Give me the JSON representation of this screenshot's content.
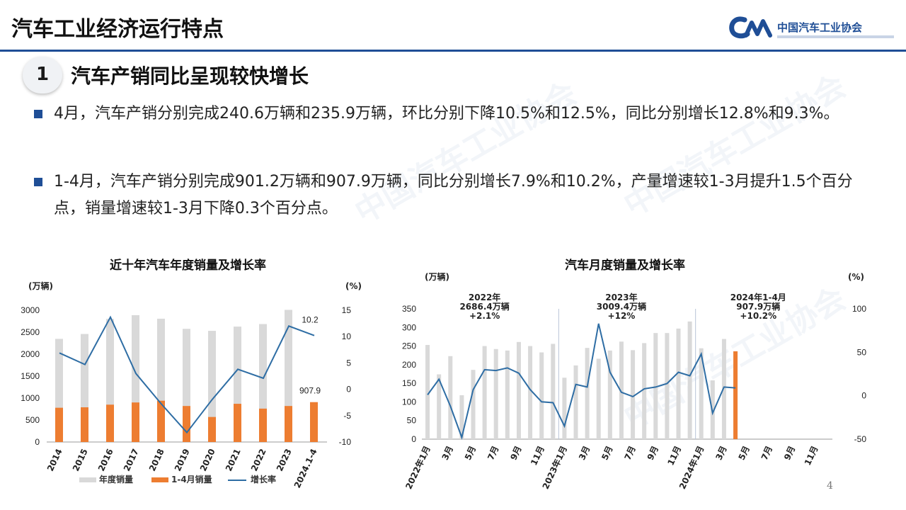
{
  "header": {
    "title": "汽车工业经济运行特点",
    "logo_text": "中国汽车工业协会"
  },
  "section": {
    "number": "1",
    "title": "汽车产销同比呈现较快增长"
  },
  "bullets": [
    "4月，汽车产销分别完成240.6万辆和235.9万辆，环比分别下降10.5%和12.5%，同比分别增长12.8%和9.3%。",
    "1-4月，汽车产销分别完成901.2万辆和907.9万辆，同比分别增长7.9%和10.2%，产量增速较1-3月提升1.5个百分点，销量增速较1-3月下降0.3个百分点。"
  ],
  "watermark": "中国汽车工业协会",
  "page_number": "4",
  "colors": {
    "brand": "#1f4e96",
    "bar_gray": "#d9d9d9",
    "bar_orange": "#ed7d31",
    "line_blue": "#2e6da4"
  },
  "chart_data": [
    {
      "type": "bar",
      "title": "近十年汽车年度销量及增长率",
      "y_unit": "(万辆)",
      "y2_unit": "(%)",
      "categories": [
        "2014",
        "2015",
        "2016",
        "2017",
        "2018",
        "2019",
        "2020",
        "2021",
        "2022",
        "2023",
        "2024.1-4"
      ],
      "ylim": [
        0,
        3000
      ],
      "yticks": [
        0,
        500,
        1000,
        1500,
        2000,
        2500,
        3000
      ],
      "y2lim": [
        -10,
        15
      ],
      "y2ticks": [
        -10,
        -5,
        0,
        5,
        10,
        15
      ],
      "series": [
        {
          "name": "年度销量",
          "kind": "bar",
          "values": [
            2349,
            2460,
            2803,
            2888,
            2808,
            2577,
            2531,
            2628,
            2686,
            3009,
            null
          ]
        },
        {
          "name": "1-4月销量",
          "kind": "bar",
          "values": [
            780,
            790,
            850,
            900,
            940,
            820,
            570,
            870,
            760,
            820,
            907.9
          ]
        },
        {
          "name": "增长率",
          "kind": "line",
          "axis": "y2",
          "values": [
            6.9,
            4.7,
            13.7,
            3.0,
            -2.8,
            -8.2,
            -1.9,
            3.8,
            2.1,
            12.0,
            10.2
          ]
        }
      ],
      "data_labels": [
        {
          "series": "1-4月销量",
          "index": 10,
          "text": "907.9"
        },
        {
          "series": "增长率",
          "index": 10,
          "text": "10.2"
        }
      ],
      "grid": false,
      "legend": "bottom"
    },
    {
      "type": "bar",
      "title": "汽车月度销量及增长率",
      "y_unit": "(万辆)",
      "y2_unit": "(%)",
      "ylim": [
        0,
        350
      ],
      "yticks": [
        0,
        50,
        100,
        150,
        200,
        250,
        300,
        350
      ],
      "y2lim": [
        -50,
        100
      ],
      "y2ticks": [
        -50,
        0,
        50,
        100
      ],
      "x_labels": [
        "2022年1月",
        "3月",
        "5月",
        "7月",
        "9月",
        "11月",
        "2023年1月",
        "3月",
        "5月",
        "7月",
        "9月",
        "11月",
        "2024年1月",
        "3月",
        "5月",
        "7月",
        "9月",
        "11月"
      ],
      "annotations": [
        {
          "lines": [
            "2022年",
            "2686.4万辆",
            "+2.1%"
          ]
        },
        {
          "lines": [
            "2023年",
            "3009.4万辆",
            "+12%"
          ]
        },
        {
          "lines": [
            "2024年1-4月",
            "907.9万辆",
            "+10.2%"
          ]
        }
      ],
      "series": [
        {
          "name": "月度销量",
          "kind": "bar",
          "values": [
            253,
            174,
            223,
            118,
            186,
            250,
            242,
            238,
            261,
            250,
            233,
            256,
            165,
            198,
            245,
            216,
            238,
            262,
            239,
            258,
            285,
            285,
            297,
            316,
            244,
            158,
            269,
            236
          ]
        },
        {
          "name": "增长率",
          "kind": "line",
          "axis": "y2",
          "values": [
            1,
            19,
            -12,
            -48,
            7,
            30,
            29,
            32,
            26,
            7,
            -7,
            -8,
            -35,
            13,
            10,
            83,
            27,
            4,
            -1,
            8,
            10,
            14,
            27,
            23,
            48,
            -20,
            10,
            9
          ]
        }
      ],
      "highlight_index": 27,
      "grid": false
    }
  ]
}
